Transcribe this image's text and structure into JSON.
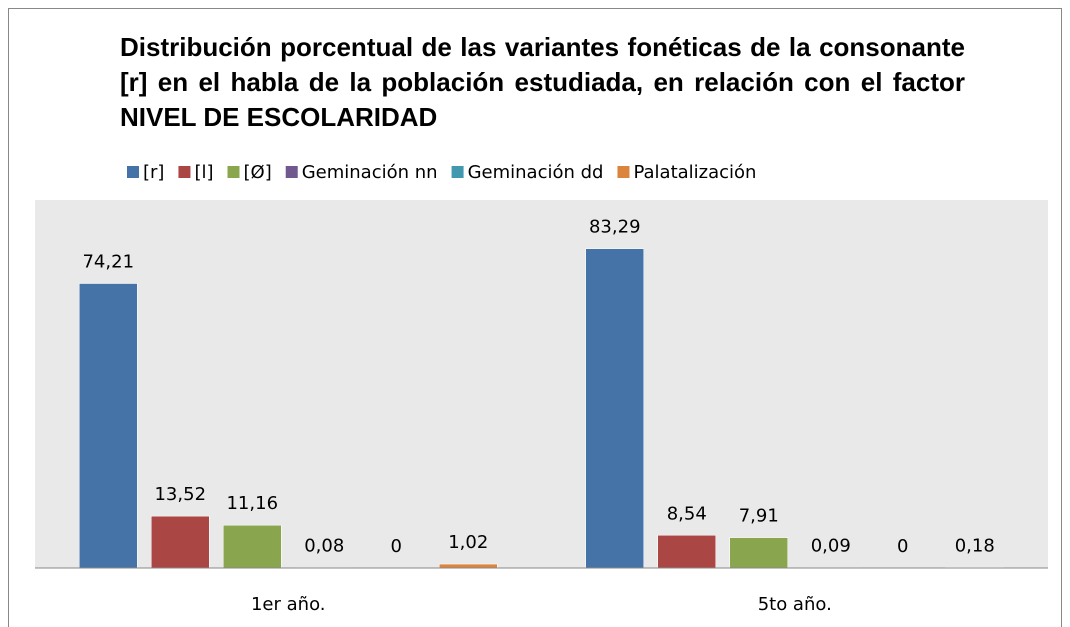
{
  "chart_data": {
    "type": "bar",
    "title": "Distribución porcentual de las variantes fonéticas de la consonante [r] en el habla de la población estudiada, en relación con el factor NIVEL DE ESCOLARIDAD",
    "categories": [
      "1er año.",
      "5to año."
    ],
    "series": [
      {
        "name": "[r]",
        "color": "#4572a7",
        "values": [
          74.21,
          83.29
        ],
        "value_labels": [
          "74,21",
          "83,29"
        ]
      },
      {
        "name": "[l]",
        "color": "#aa4643",
        "values": [
          13.52,
          8.54
        ],
        "value_labels": [
          "13,52",
          "8,54"
        ]
      },
      {
        "name": "[Ø]",
        "color": "#89a54e",
        "values": [
          11.16,
          7.91
        ],
        "value_labels": [
          "11,16",
          "7,91"
        ]
      },
      {
        "name": "Geminación nn",
        "color": "#71588f",
        "values": [
          0.08,
          0.09
        ],
        "value_labels": [
          "0,08",
          "0,09"
        ]
      },
      {
        "name": "Geminación dd",
        "color": "#4198af",
        "values": [
          0,
          0
        ]
      },
      {
        "name": "Palatalización",
        "color": "#db843d",
        "values": [
          1.02,
          0.18
        ],
        "value_labels": [
          "1,02",
          "0,18"
        ]
      }
    ],
    "ylim": [
      0,
      96
    ],
    "legend": "top"
  }
}
